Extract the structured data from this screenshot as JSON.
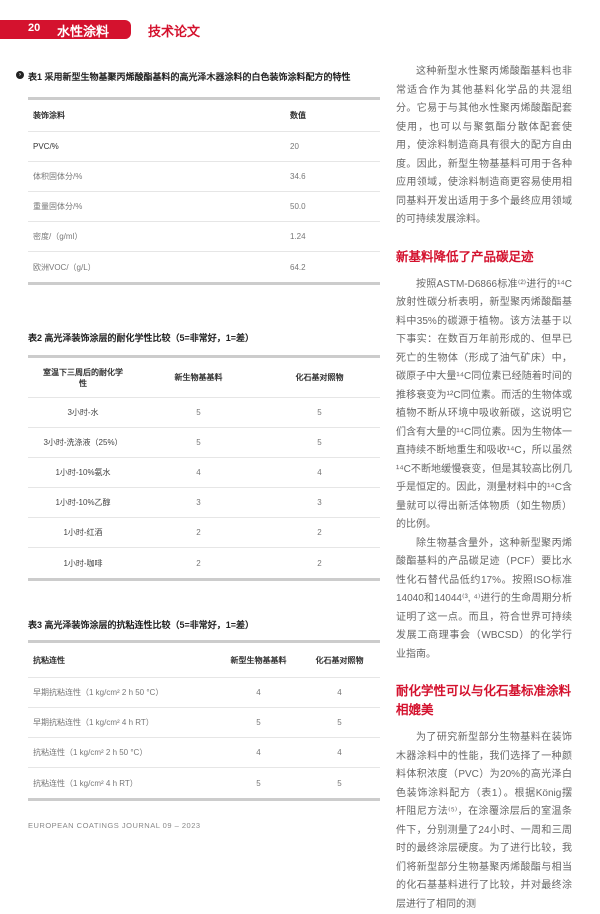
{
  "header": {
    "page_number": "20",
    "section": "水性涂料",
    "category": "技术论文",
    "accent": "#d4122e"
  },
  "table1": {
    "caption": "表1 采用新型生物基聚丙烯酸酯基料的高光泽木器涂料的白色装饰涂料配方的特性",
    "headers": [
      "装饰涂料",
      "数值"
    ],
    "rows": [
      [
        "PVC/%",
        "20"
      ],
      [
        "体积固体分/%",
        "34.6"
      ],
      [
        "重量固体分/%",
        "50.0"
      ],
      [
        "密度/（g/ml）",
        "1.24"
      ],
      [
        "欧洲VOC/（g/L）",
        "64.2"
      ]
    ]
  },
  "table2": {
    "caption": "表2 高光泽装饰涂层的耐化学性比较（5=非常好，1=差）",
    "headers": [
      "室温下三周后的耐化学性",
      "新生物基基料",
      "化石基对照物"
    ],
    "rows": [
      [
        "3小时-水",
        "5",
        "5"
      ],
      [
        "3小时-洗涤液（25%）",
        "5",
        "5"
      ],
      [
        "1小时-10%氨水",
        "4",
        "4"
      ],
      [
        "1小时-10%乙醇",
        "3",
        "3"
      ],
      [
        "1小时-红酒",
        "2",
        "2"
      ],
      [
        "1小时-咖啡",
        "2",
        "2"
      ]
    ]
  },
  "table3": {
    "caption": "表3 高光泽装饰涂层的抗粘连性比较（5=非常好，1=差）",
    "headers": [
      "抗粘连性",
      "新型生物基基料",
      "化石基对照物"
    ],
    "rows": [
      [
        "早期抗粘连性（1 kg/cm² 2 h 50 °C）",
        "4",
        "4"
      ],
      [
        "早期抗粘连性（1 kg/cm² 4 h RT）",
        "5",
        "5"
      ],
      [
        "抗粘连性（1 kg/cm² 2 h 50 °C）",
        "4",
        "4"
      ],
      [
        "抗粘连性（1 kg/cm² 4 h RT）",
        "5",
        "5"
      ]
    ]
  },
  "article": {
    "p1": "这种新型水性聚丙烯酸酯基料也非常适合作为其他基料化学品的共混组分。它易于与其他水性聚丙烯酸酯配套使用，也可以与聚氨酯分散体配套使用，使涂料制造商具有很大的配方自由度。因此，新型生物基基料可用于各种应用领域，使涂料制造商更容易使用相同基料开发出适用于多个最终应用领域的可持续发展涂料。",
    "h1": "新基料降低了产品碳足迹",
    "p2": "按照ASTM-D6866标准⁽²⁾进行的¹⁴C放射性碳分析表明，新型聚丙烯酸酯基料中35%的碳源于植物。该方法基于以下事实：在数百万年前形成的、但早已死亡的生物体（形成了油气矿床）中，碳原子中大量¹⁴C同位素已经随着时间的推移衰变为¹²C同位素。而活的生物体或植物不断从环境中吸收新碳，这说明它们含有大量的¹⁴C同位素。因为生物体一直持续不断地重生和吸收¹⁴C，所以虽然¹⁴C不断地缓慢衰变，但是其较高比例几乎是恒定的。因此，测量材料中的¹⁴C含量就可以得出新活体物质（如生物质）的比例。",
    "p3": "除生物基含量外，这种新型聚丙烯酸酯基料的产品碳足迹（PCF）要比水性化石替代品低约17%。按照ISO标准14040和14044⁽³, ⁴⁾进行的生命周期分析证明了这一点。而且，符合世界可持续发展工商理事会（WBCSD）的化学行业指南。",
    "h2": "耐化学性可以与化石基标准涂料相媲美",
    "p4": "为了研究新型部分生物基料在装饰木器涂料中的性能，我们选择了一种颜料体积浓度（PVC）为20%的高光泽白色装饰涂料配方（表1）。根据König摆杆阻尼方法⁽⁵⁾，在涂覆涂层后的室温条件下，分别测量了24小时、一周和三周时的最终涂层硬度。为了进行比较，我们将新型部分生物基聚丙烯酸酯与相当的化石基基料进行了比较，并对最终涂层进行了相同的测"
  },
  "footer": "EUROPEAN COATINGS JOURNAL 09 – 2023"
}
